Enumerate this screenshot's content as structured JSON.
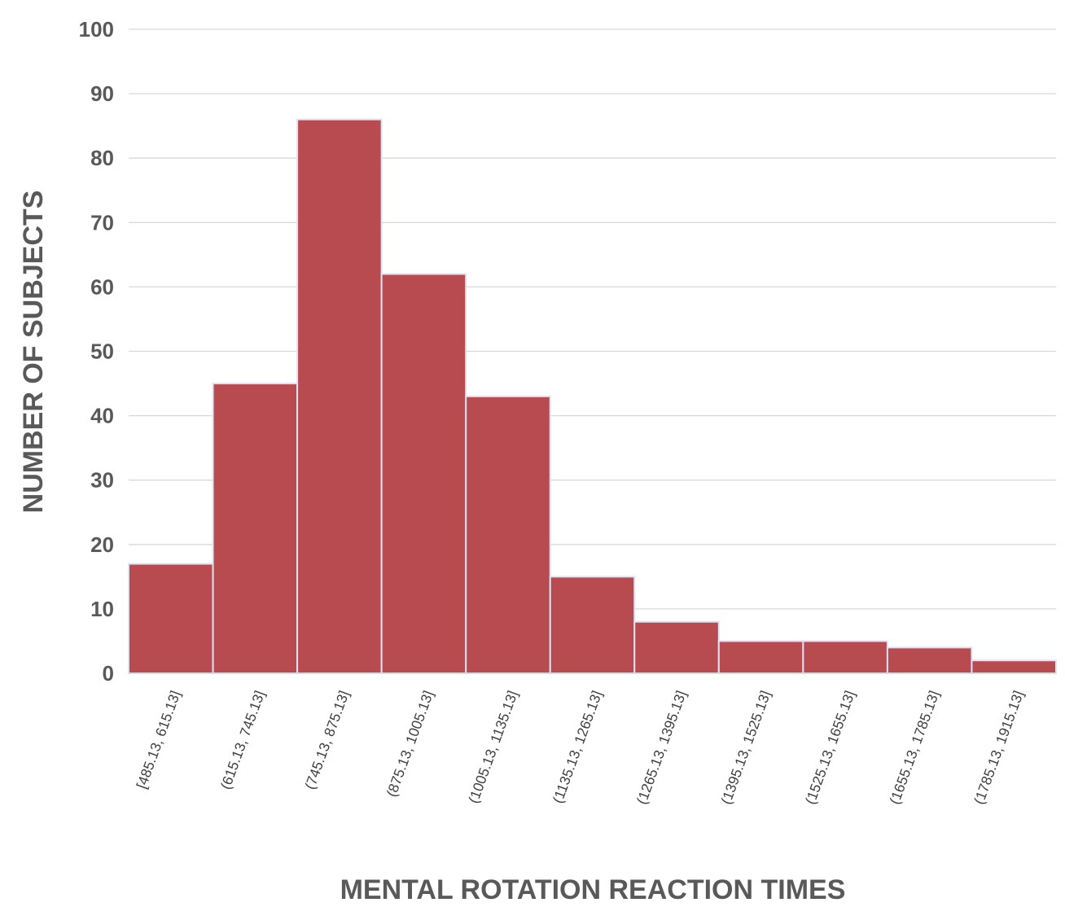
{
  "chart_data": {
    "type": "bar",
    "variant": "histogram",
    "categories": [
      "[485.13, 615.13]",
      "(615.13, 745.13]",
      "(745.13, 875.13]",
      "(875.13, 1005.13]",
      "(1005.13, 1135.13]",
      "(1135.13, 1265.13]",
      "(1265.13, 1395.13]",
      "(1395.13, 1525.13]",
      "(1525.13, 1655.13]",
      "(1655.13, 1785.13]",
      "(1785.13, 1915.13]"
    ],
    "values": [
      17,
      45,
      86,
      62,
      43,
      15,
      8,
      5,
      5,
      4,
      2
    ],
    "xlabel": "MENTAL ROTATION REACTION TIMES",
    "ylabel": "NUMBER OF SUBJECTS",
    "ylim": [
      0,
      100
    ],
    "yticks": [
      0,
      10,
      20,
      30,
      40,
      50,
      60,
      70,
      80,
      90,
      100
    ],
    "grid": true,
    "legend": "none",
    "bar_color": "#b84b4f",
    "gridline_color": "#d9d9d9"
  }
}
